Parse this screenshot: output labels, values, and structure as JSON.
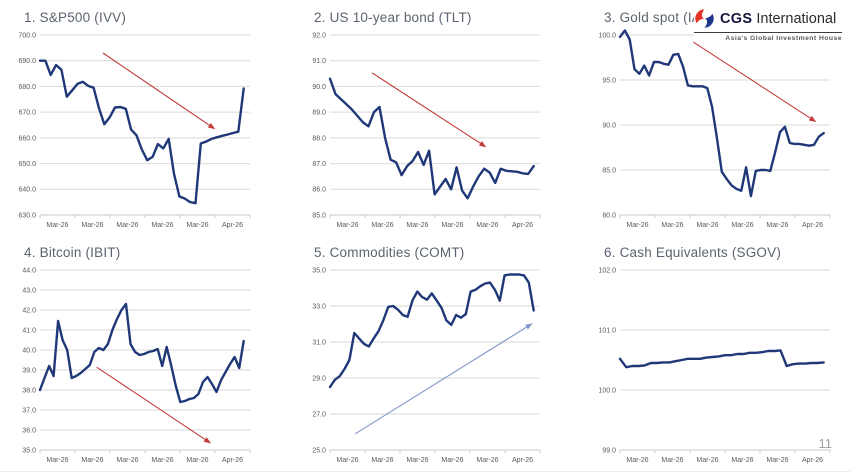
{
  "page": {
    "number": "11"
  },
  "logo": {
    "brand_bold": "CGS",
    "brand_rest": "International",
    "tagline": "Asia's Global Investment House"
  },
  "colors": {
    "line": "#203878",
    "grid": "#d9d9d9",
    "axis": "#c9c9c9",
    "tick_text": "#595959",
    "title_text": "#5b6470",
    "arrow_red": "#c23b3b",
    "arrow_blue": "#8396cb",
    "logo_red": "#e63329",
    "logo_blue": "#20368c"
  },
  "chart_data": [
    {
      "type": "line",
      "title": "1. S&P500 (IVV)",
      "ylim": [
        630.0,
        700.0
      ],
      "ytick_step": 10.0,
      "x_labels": [
        "Mar-26",
        "Mar-26",
        "Mar-26",
        "Mar-26",
        "Mar-26",
        "Apr-26"
      ],
      "values": [
        690,
        690,
        684.5,
        688.3,
        686.5,
        676,
        678.5,
        681,
        681.8,
        680.2,
        679.5,
        671.5,
        665.3,
        668,
        671.8,
        672,
        671.3,
        663.2,
        661,
        655.5,
        651.3,
        652.6,
        657.6,
        655.9,
        659.6,
        646,
        637.2,
        636.4,
        635,
        634.6,
        657.8,
        658.6,
        659.6,
        660.2,
        660.8,
        661.3,
        661.9,
        662.4,
        679.2
      ],
      "arrow": {
        "color": "red",
        "x1": 0.3,
        "y1": 0.1,
        "x2": 0.83,
        "y2": 0.52
      }
    },
    {
      "type": "line",
      "title": "2. US 10-year bond (TLT)",
      "ylim": [
        85.0,
        92.0
      ],
      "ytick_step": 1.0,
      "x_labels": [
        "Mar-26",
        "Mar-26",
        "Mar-26",
        "Mar-26",
        "Mar-26",
        "Apr-26"
      ],
      "values": [
        90.3,
        89.7,
        89.5,
        89.3,
        89.1,
        88.85,
        88.6,
        88.45,
        89.0,
        89.2,
        88.0,
        87.15,
        87.05,
        86.55,
        86.9,
        87.1,
        87.45,
        86.95,
        87.5,
        85.8,
        86.1,
        86.4,
        86.0,
        86.85,
        85.95,
        85.65,
        86.1,
        86.5,
        86.8,
        86.65,
        86.25,
        86.8,
        86.72,
        86.7,
        86.68,
        86.62,
        86.6,
        86.9
      ],
      "arrow": {
        "color": "red",
        "x1": 0.2,
        "y1": 0.21,
        "x2": 0.74,
        "y2": 0.62
      }
    },
    {
      "type": "line",
      "title": "3. Gold spot (IAU)",
      "ylim": [
        80.0,
        100.0
      ],
      "ytick_step": 5.0,
      "x_labels": [
        "Mar-26",
        "Mar-26",
        "Mar-26",
        "Mar-26",
        "Mar-26",
        "Apr-26"
      ],
      "values": [
        99.8,
        100.5,
        99.5,
        96.2,
        95.7,
        96.6,
        95.5,
        97.0,
        97.0,
        96.8,
        96.7,
        97.8,
        97.9,
        96.5,
        94.4,
        94.3,
        94.3,
        94.3,
        94.1,
        92.0,
        88.5,
        84.8,
        84.0,
        83.3,
        82.9,
        82.7,
        85.3,
        82.1,
        84.9,
        85.0,
        85.0,
        84.9,
        87.0,
        89.2,
        89.8,
        88.0,
        87.9,
        87.9,
        87.8,
        87.7,
        87.8,
        88.7,
        89.1
      ],
      "arrow": {
        "color": "red",
        "x1": 0.35,
        "y1": 0.04,
        "x2": 0.93,
        "y2": 0.48
      }
    },
    {
      "type": "line",
      "title": "4. Bitcoin (IBIT)",
      "ylim": [
        35.0,
        44.0
      ],
      "ytick_step": 1.0,
      "x_labels": [
        "Mar-26",
        "Mar-26",
        "Mar-26",
        "Mar-26",
        "Mar-26",
        "Apr-26"
      ],
      "values": [
        38.0,
        38.6,
        39.2,
        38.7,
        41.45,
        40.5,
        40.0,
        38.6,
        38.7,
        38.85,
        39.05,
        39.25,
        39.9,
        40.1,
        40.0,
        40.3,
        41.0,
        41.55,
        42.0,
        42.3,
        40.3,
        39.9,
        39.75,
        39.8,
        39.9,
        39.95,
        40.05,
        39.2,
        40.15,
        39.2,
        38.2,
        37.4,
        37.45,
        37.55,
        37.6,
        37.8,
        38.4,
        38.65,
        38.3,
        37.9,
        38.5,
        38.9,
        39.3,
        39.65,
        39.1,
        40.45
      ],
      "arrow": {
        "color": "red",
        "x1": 0.27,
        "y1": 0.54,
        "x2": 0.81,
        "y2": 0.96
      }
    },
    {
      "type": "line",
      "title": "5. Commodities (COMT)",
      "ylim": [
        25.0,
        35.0
      ],
      "ytick_step": 2.0,
      "x_labels": [
        "Mar-26",
        "Mar-26",
        "Mar-26",
        "Mar-26",
        "Mar-26",
        "Apr-26"
      ],
      "values": [
        28.5,
        28.9,
        29.1,
        29.5,
        30.0,
        31.5,
        31.2,
        30.9,
        30.75,
        31.2,
        31.6,
        32.2,
        32.95,
        33.0,
        32.8,
        32.5,
        32.4,
        33.3,
        33.8,
        33.5,
        33.35,
        33.7,
        33.3,
        32.9,
        32.2,
        31.95,
        32.5,
        32.35,
        32.55,
        33.8,
        33.9,
        34.1,
        34.25,
        34.3,
        33.9,
        33.3,
        34.7,
        34.75,
        34.75,
        34.75,
        34.7,
        34.3,
        32.75
      ],
      "arrow": {
        "color": "blue",
        "x1": 0.12,
        "y1": 0.91,
        "x2": 0.96,
        "y2": 0.3
      }
    },
    {
      "type": "line",
      "title": "6. Cash Equivalents (SGOV)",
      "ylim": [
        99.0,
        102.0
      ],
      "ytick_step": 1.0,
      "x_labels": [
        "Mar-26",
        "Mar-26",
        "Mar-26",
        "Mar-26",
        "Mar-26",
        "Apr-26"
      ],
      "values": [
        100.52,
        100.38,
        100.4,
        100.4,
        100.41,
        100.45,
        100.45,
        100.46,
        100.46,
        100.48,
        100.5,
        100.52,
        100.52,
        100.52,
        100.54,
        100.55,
        100.56,
        100.58,
        100.58,
        100.6,
        100.6,
        100.62,
        100.62,
        100.63,
        100.65,
        100.65,
        100.66,
        100.4,
        100.43,
        100.44,
        100.44,
        100.45,
        100.45,
        100.46
      ],
      "arrow": null
    }
  ]
}
